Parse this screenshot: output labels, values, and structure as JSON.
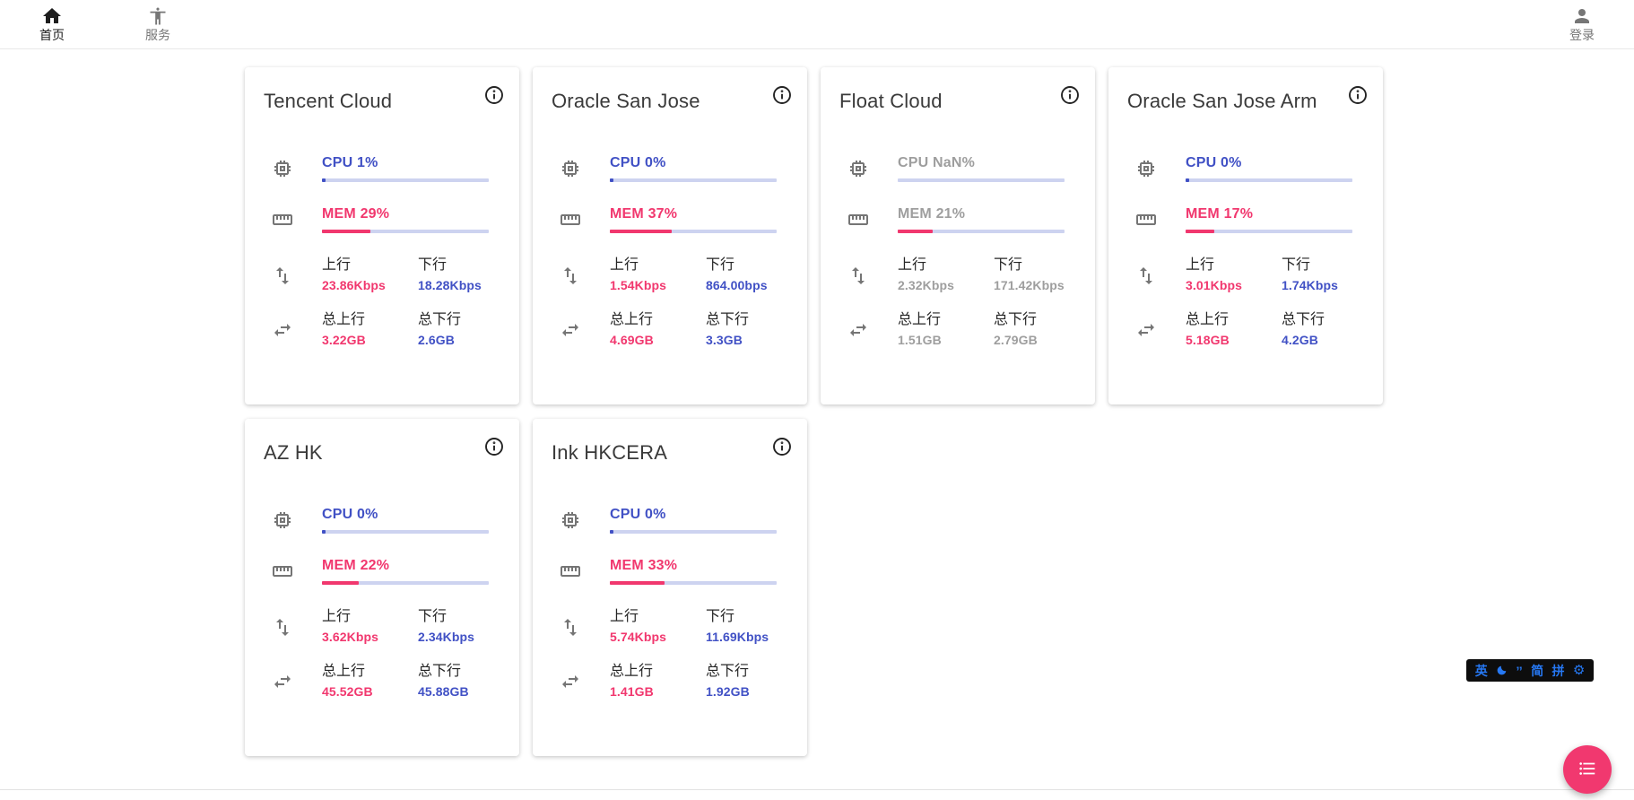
{
  "nav": {
    "items_left": [
      {
        "label": "首页",
        "icon": "home-icon",
        "state": "active"
      },
      {
        "label": "服务",
        "icon": "accessibility-icon",
        "state": "inactive"
      }
    ],
    "items_right": [
      {
        "label": "登录",
        "icon": "person-icon",
        "state": "inactive"
      }
    ]
  },
  "labels": {
    "up": "上行",
    "down": "下行",
    "total_up": "总上行",
    "total_down": "总下行"
  },
  "servers": [
    {
      "name": "Tencent Cloud",
      "state": "online",
      "cpu_label": "CPU 1%",
      "cpu_pct": 1,
      "mem_label": "MEM 29%",
      "mem_pct": 29,
      "up": "23.86Kbps",
      "down": "18.28Kbps",
      "total_up": "3.22GB",
      "total_down": "2.6GB"
    },
    {
      "name": "Oracle San Jose",
      "state": "online",
      "cpu_label": "CPU 0%",
      "cpu_pct": 0,
      "mem_label": "MEM 37%",
      "mem_pct": 37,
      "up": "1.54Kbps",
      "down": "864.00bps",
      "total_up": "4.69GB",
      "total_down": "3.3GB"
    },
    {
      "name": "Float Cloud",
      "state": "offline",
      "cpu_label": "CPU NaN%",
      "cpu_pct": 0,
      "mem_label": "MEM 21%",
      "mem_pct": 21,
      "up": "2.32Kbps",
      "down": "171.42Kbps",
      "total_up": "1.51GB",
      "total_down": "2.79GB"
    },
    {
      "name": "Oracle San Jose Arm",
      "state": "online",
      "cpu_label": "CPU 0%",
      "cpu_pct": 0,
      "mem_label": "MEM 17%",
      "mem_pct": 17,
      "up": "3.01Kbps",
      "down": "1.74Kbps",
      "total_up": "5.18GB",
      "total_down": "4.2GB"
    },
    {
      "name": "AZ HK",
      "state": "online",
      "cpu_label": "CPU 0%",
      "cpu_pct": 0,
      "mem_label": "MEM 22%",
      "mem_pct": 22,
      "up": "3.62Kbps",
      "down": "2.34Kbps",
      "total_up": "45.52GB",
      "total_down": "45.88GB"
    },
    {
      "name": "Ink HKCERA",
      "state": "online",
      "cpu_label": "CPU 0%",
      "cpu_pct": 0,
      "mem_label": "MEM 33%",
      "mem_pct": 33,
      "up": "5.74Kbps",
      "down": "11.69Kbps",
      "total_up": "1.41GB",
      "total_down": "1.92GB"
    }
  ],
  "ime_bar": {
    "english": "英",
    "punctuation": "’’",
    "simplified": "简",
    "pinyin": "拼",
    "icons": [
      "moon-icon",
      "gear-icon"
    ]
  },
  "icons": {
    "card_info": "info-icon",
    "cpu": "cpu-chip-icon",
    "memory": "ruler-icon",
    "speed": "up-down-arrows-icon",
    "traffic": "swap-arrows-icon",
    "fab": "list-icon"
  },
  "colors": {
    "accent_blue": "#4151c5",
    "accent_pink": "#f1376e",
    "offline_gray": "#9e9e9e",
    "progress_track": "#cdd3f0",
    "fab_pink": "#f1386f",
    "ime_blue": "#2678f3"
  }
}
